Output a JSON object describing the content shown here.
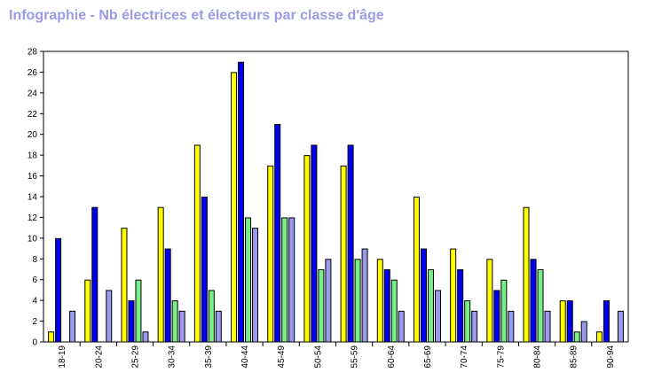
{
  "page": {
    "title": "Infographie - Nb électrices et électeurs par classe d'âge"
  },
  "chart_data": {
    "type": "bar",
    "title": "Infographie - Nb électrices et électeurs par classe d'âge",
    "xlabel": "",
    "ylabel": "",
    "ylim": [
      0,
      28
    ],
    "yticks": [
      0,
      2,
      4,
      6,
      8,
      10,
      12,
      14,
      16,
      18,
      20,
      22,
      24,
      26,
      28
    ],
    "categories": [
      "18-19",
      "20-24",
      "25-29",
      "30-34",
      "35-39",
      "40-44",
      "45-49",
      "50-54",
      "55-59",
      "60-64",
      "65-69",
      "70-74",
      "75-79",
      "80-84",
      "85-89",
      "90-94"
    ],
    "series": [
      {
        "color": "#ffff00",
        "values": [
          1,
          6,
          11,
          13,
          19,
          26,
          17,
          18,
          17,
          8,
          14,
          9,
          8,
          13,
          4,
          1
        ]
      },
      {
        "color": "#0000ee",
        "values": [
          10,
          13,
          4,
          9,
          14,
          27,
          21,
          19,
          19,
          7,
          9,
          7,
          5,
          8,
          4,
          4
        ]
      },
      {
        "color": "#77ee88",
        "values": [
          0,
          0,
          6,
          4,
          5,
          12,
          12,
          7,
          8,
          6,
          7,
          4,
          6,
          7,
          1,
          0
        ]
      },
      {
        "color": "#9999ee",
        "values": [
          3,
          5,
          1,
          3,
          3,
          11,
          12,
          8,
          9,
          3,
          5,
          3,
          3,
          3,
          2,
          3
        ]
      }
    ],
    "grid": false,
    "legend": "none"
  }
}
